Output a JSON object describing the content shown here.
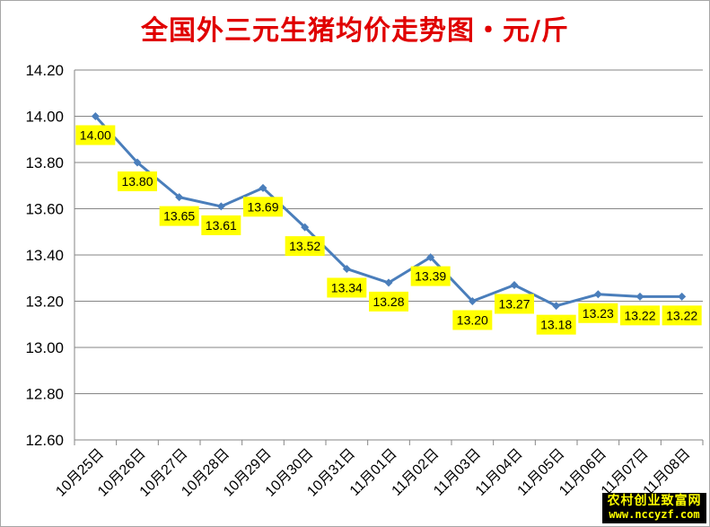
{
  "chart_data": {
    "type": "line",
    "title": "全国外三元生猪均价走势图・元/斤",
    "categories": [
      "10月25日",
      "10月26日",
      "10月27日",
      "10月28日",
      "10月29日",
      "10月30日",
      "10月31日",
      "11月01日",
      "11月02日",
      "11月03日",
      "11月04日",
      "11月05日",
      "11月06日",
      "11月07日",
      "11月08日"
    ],
    "series": [
      {
        "values": [
          14.0,
          13.8,
          13.65,
          13.61,
          13.69,
          13.52,
          13.34,
          13.28,
          13.39,
          13.2,
          13.27,
          13.18,
          13.23,
          13.22,
          13.22
        ]
      }
    ],
    "data_labels": [
      "14.00",
      "13.80",
      "13.65",
      "13.61",
      "13.69",
      "13.52",
      "13.34",
      "13.28",
      "13.39",
      "13.20",
      "13.27",
      "13.18",
      "13.23",
      "13.22",
      "13.22"
    ],
    "y_ticks": [
      "12.60",
      "12.80",
      "13.00",
      "13.20",
      "13.40",
      "13.60",
      "13.80",
      "14.00",
      "14.20"
    ],
    "ylim": [
      12.6,
      14.2
    ],
    "grid": true,
    "legend": "none",
    "colors": {
      "line": "#4a7ebb",
      "label_bg": "#ffff00",
      "title": "#e00000",
      "grid": "#868686"
    }
  },
  "watermark": {
    "text_cn": "农村创业致富网",
    "url": "www.nccyzf.com"
  }
}
